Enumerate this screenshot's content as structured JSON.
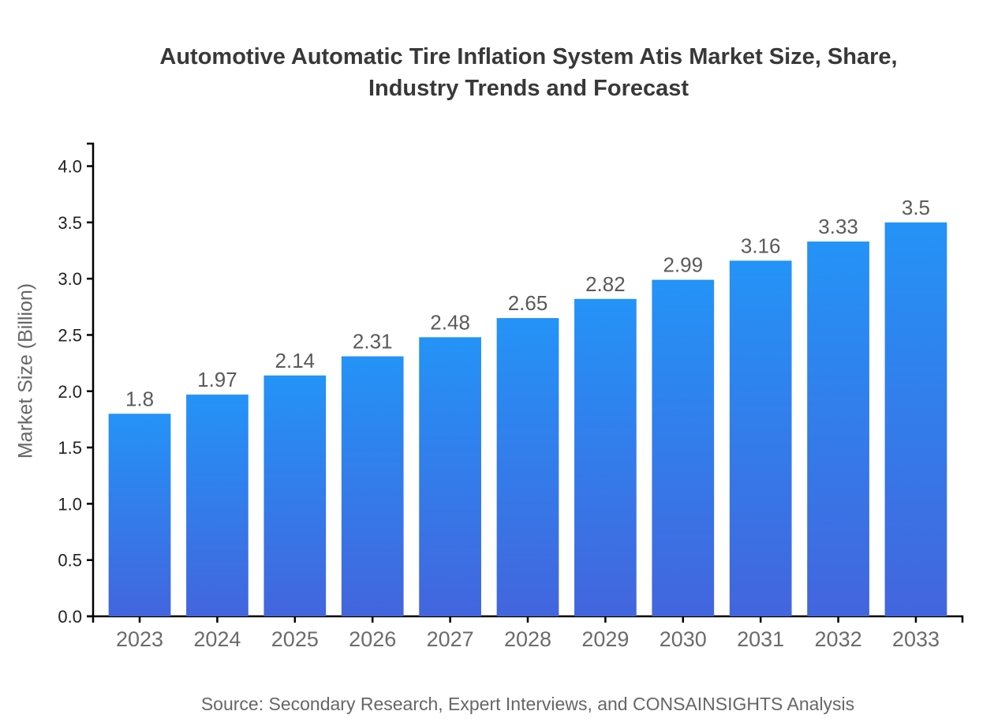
{
  "chart_data": {
    "type": "bar",
    "title": "Automotive Automatic Tire Inflation System Atis Market Size, Share, Industry Trends and Forecast",
    "title_line1": "Automotive Automatic Tire Inflation System Atis Market Size, Share,",
    "title_line2": "Industry Trends and Forecast",
    "categories": [
      "2023",
      "2024",
      "2025",
      "2026",
      "2027",
      "2028",
      "2029",
      "2030",
      "2031",
      "2032",
      "2033"
    ],
    "values": [
      1.8,
      1.97,
      2.14,
      2.31,
      2.48,
      2.65,
      2.82,
      2.99,
      3.16,
      3.33,
      3.5
    ],
    "bar_labels": [
      "1.8",
      "1.97",
      "2.14",
      "2.31",
      "2.48",
      "2.65",
      "2.82",
      "2.99",
      "3.16",
      "3.33",
      "3.5"
    ],
    "xlabel": "",
    "ylabel": "Market Size (Billion)",
    "ylim": [
      0,
      4.2
    ],
    "yticks": [
      0,
      0.5,
      1,
      1.5,
      2,
      2.5,
      3,
      3.5,
      4
    ],
    "grid": false,
    "legend": false,
    "source": "Source: Secondary Research, Expert Interviews, and CONSAINSIGHTS Analysis"
  },
  "colors": {
    "background": "#FFFFFF",
    "bar_gradient_top": "#2493F7",
    "bar_gradient_bottom": "#4365DD",
    "axis": "#000000",
    "title_text": "#383838",
    "y_tick_label": "#212121",
    "x_tick_label": "#6B6B6B",
    "value_label": "#5A5A5A",
    "muted_text": "#666666"
  }
}
